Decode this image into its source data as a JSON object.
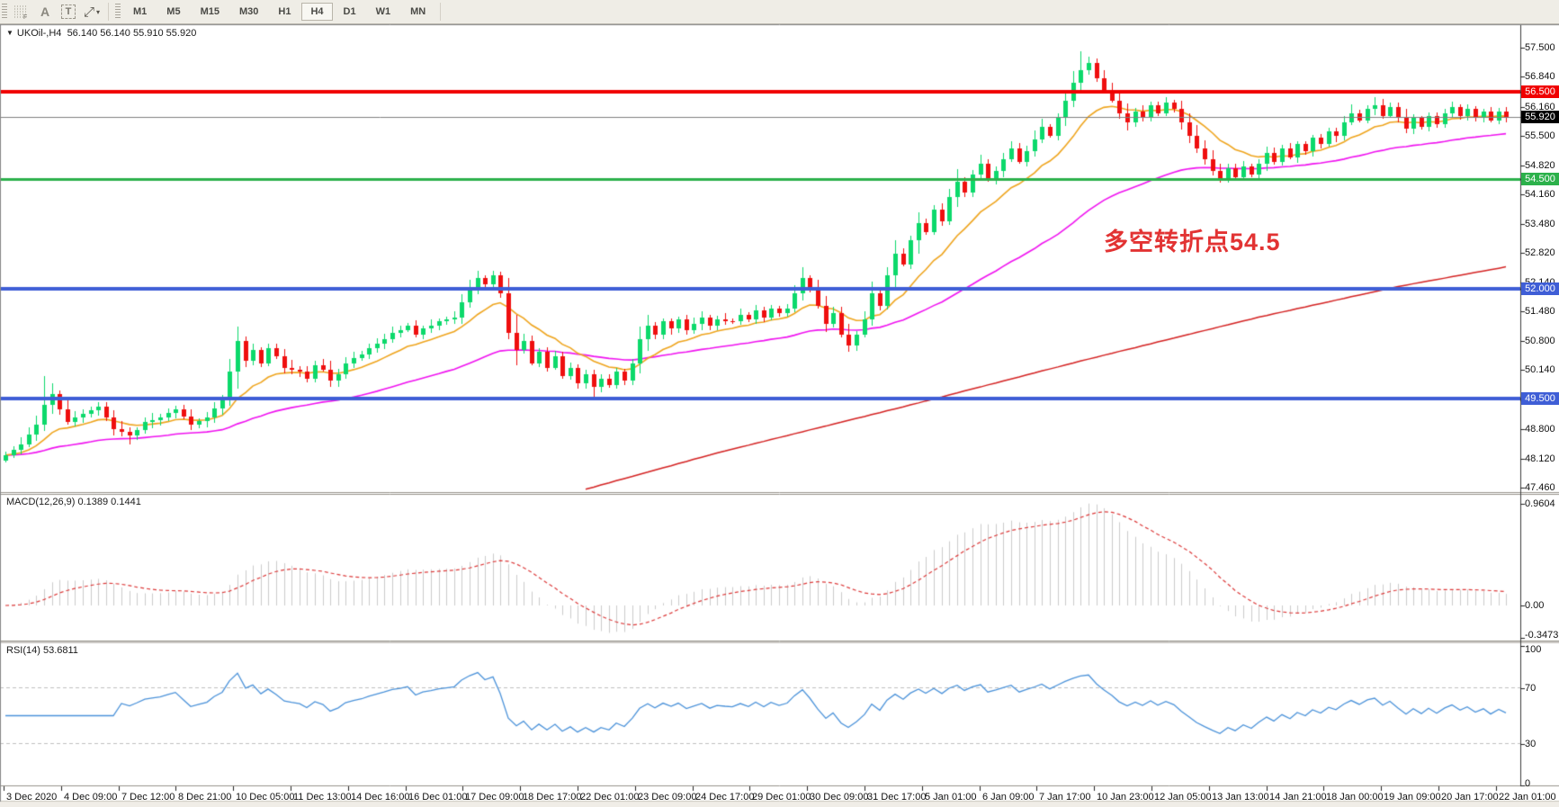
{
  "toolbar": {
    "icons": [
      {
        "name": "template-grid-icon",
        "glyph": "F"
      },
      {
        "name": "cursor-arrow-icon",
        "glyph": "A"
      },
      {
        "name": "text-label-icon",
        "glyph": "T"
      },
      {
        "name": "line-studies-icon",
        "glyph": "⤢"
      },
      {
        "name": "dropdown-caret-icon",
        "glyph": "▾"
      }
    ],
    "timeframes": [
      "M1",
      "M5",
      "M15",
      "M30",
      "H1",
      "H4",
      "D1",
      "W1",
      "MN"
    ],
    "active_timeframe": "H4"
  },
  "chart": {
    "title_symbol": "UKOil-,H4",
    "title_quote": "56.140 56.140 55.910 55.920"
  },
  "chart_data": {
    "type": "candlestick",
    "symbol": "UKOil-",
    "timeframe": "H4",
    "last_quote": {
      "open": 56.14,
      "high": 56.14,
      "low": 55.91,
      "close": 55.92
    },
    "ylim": [
      47.36,
      58.02
    ],
    "price_axis_ticks": [
      "57.500",
      "56.840",
      "56.160",
      "55.500",
      "54.820",
      "54.160",
      "53.480",
      "52.820",
      "52.140",
      "51.480",
      "50.800",
      "50.140",
      "49.460",
      "48.800",
      "48.120",
      "47.460"
    ],
    "levels": [
      {
        "price": 56.5,
        "label": "56.500",
        "color": "#f00000",
        "badge_bg": "#f00000",
        "width": 4
      },
      {
        "price": 55.92,
        "label": "55.920",
        "color": "#808080",
        "badge_bg": "#000000",
        "width": 1
      },
      {
        "price": 54.5,
        "label": "54.500",
        "color": "#2cb14b",
        "badge_bg": "#2cb14b",
        "width": 3
      },
      {
        "price": 52.0,
        "label": "52.000",
        "color": "#3f5ed6",
        "badge_bg": "#3f5ed6",
        "width": 4
      },
      {
        "price": 49.5,
        "label": "49.500",
        "color": "#3f5ed6",
        "badge_bg": "#3f5ed6",
        "width": 4
      }
    ],
    "x_labels": [
      "3 Dec 2020",
      "4 Dec 09:00",
      "7 Dec 12:00",
      "8 Dec 21:00",
      "10 Dec 05:00",
      "11 Dec 13:00",
      "14 Dec 16:00",
      "16 Dec 01:00",
      "17 Dec 09:00",
      "18 Dec 17:00",
      "22 Dec 01:00",
      "23 Dec 09:00",
      "24 Dec 17:00",
      "29 Dec 01:00",
      "30 Dec 09:00",
      "31 Dec 17:00",
      "5 Jan 01:00",
      "6 Jan 09:00",
      "7 Jan 17:00",
      "10 Jan 23:00",
      "12 Jan 05:00",
      "13 Jan 13:00",
      "14 Jan 21:00",
      "18 Jan 00:00",
      "19 Jan 09:00",
      "20 Jan 17:00",
      "22 Jan 01:00"
    ],
    "close_anchors": [
      [
        0,
        48.2
      ],
      [
        2,
        48.45
      ],
      [
        4,
        48.9
      ],
      [
        5,
        49.35
      ],
      [
        6,
        49.6
      ],
      [
        7,
        49.25
      ],
      [
        8,
        48.95
      ],
      [
        10,
        49.15
      ],
      [
        12,
        49.3
      ],
      [
        14,
        48.8
      ],
      [
        16,
        48.65
      ],
      [
        18,
        48.95
      ],
      [
        20,
        49.05
      ],
      [
        22,
        49.25
      ],
      [
        24,
        48.9
      ],
      [
        26,
        49.05
      ],
      [
        28,
        49.45
      ],
      [
        29,
        50.1
      ],
      [
        30,
        50.8
      ],
      [
        31,
        50.35
      ],
      [
        32,
        50.6
      ],
      [
        33,
        50.3
      ],
      [
        34,
        50.65
      ],
      [
        35,
        50.45
      ],
      [
        36,
        50.2
      ],
      [
        38,
        50.1
      ],
      [
        39,
        49.95
      ],
      [
        40,
        50.25
      ],
      [
        41,
        50.15
      ],
      [
        42,
        49.9
      ],
      [
        43,
        50.05
      ],
      [
        44,
        50.3
      ],
      [
        46,
        50.5
      ],
      [
        48,
        50.75
      ],
      [
        50,
        51.0
      ],
      [
        52,
        51.15
      ],
      [
        53,
        50.95
      ],
      [
        54,
        51.1
      ],
      [
        56,
        51.25
      ],
      [
        58,
        51.35
      ],
      [
        59,
        51.7
      ],
      [
        60,
        52.0
      ],
      [
        61,
        52.25
      ],
      [
        62,
        52.1
      ],
      [
        63,
        52.3
      ],
      [
        64,
        51.9
      ],
      [
        65,
        51.0
      ],
      [
        66,
        50.6
      ],
      [
        67,
        50.8
      ],
      [
        68,
        50.3
      ],
      [
        69,
        50.55
      ],
      [
        70,
        50.2
      ],
      [
        71,
        50.45
      ],
      [
        72,
        50.0
      ],
      [
        73,
        50.2
      ],
      [
        74,
        49.85
      ],
      [
        75,
        50.05
      ],
      [
        76,
        49.75
      ],
      [
        77,
        49.95
      ],
      [
        78,
        49.8
      ],
      [
        79,
        50.1
      ],
      [
        80,
        49.9
      ],
      [
        81,
        50.3
      ],
      [
        82,
        50.85
      ],
      [
        83,
        51.15
      ],
      [
        84,
        50.95
      ],
      [
        85,
        51.25
      ],
      [
        86,
        51.1
      ],
      [
        87,
        51.3
      ],
      [
        88,
        51.05
      ],
      [
        89,
        51.2
      ],
      [
        90,
        51.35
      ],
      [
        91,
        51.15
      ],
      [
        92,
        51.3
      ],
      [
        94,
        51.25
      ],
      [
        95,
        51.4
      ],
      [
        96,
        51.3
      ],
      [
        97,
        51.5
      ],
      [
        98,
        51.35
      ],
      [
        99,
        51.55
      ],
      [
        100,
        51.45
      ],
      [
        101,
        51.55
      ],
      [
        102,
        51.9
      ],
      [
        103,
        52.25
      ],
      [
        104,
        52.0
      ],
      [
        105,
        51.6
      ],
      [
        106,
        51.2
      ],
      [
        107,
        51.45
      ],
      [
        108,
        50.95
      ],
      [
        109,
        50.7
      ],
      [
        110,
        50.95
      ],
      [
        111,
        51.3
      ],
      [
        112,
        51.9
      ],
      [
        113,
        51.6
      ],
      [
        114,
        52.3
      ],
      [
        115,
        52.8
      ],
      [
        116,
        52.55
      ],
      [
        117,
        53.1
      ],
      [
        118,
        53.5
      ],
      [
        119,
        53.3
      ],
      [
        120,
        53.8
      ],
      [
        121,
        53.55
      ],
      [
        122,
        54.1
      ],
      [
        123,
        54.45
      ],
      [
        124,
        54.2
      ],
      [
        125,
        54.6
      ],
      [
        126,
        54.85
      ],
      [
        127,
        54.5
      ],
      [
        128,
        54.7
      ],
      [
        129,
        54.95
      ],
      [
        130,
        55.2
      ],
      [
        131,
        54.9
      ],
      [
        132,
        55.15
      ],
      [
        133,
        55.4
      ],
      [
        134,
        55.7
      ],
      [
        135,
        55.5
      ],
      [
        136,
        55.9
      ],
      [
        137,
        56.3
      ],
      [
        138,
        56.7
      ],
      [
        139,
        57.0
      ],
      [
        140,
        57.15
      ],
      [
        141,
        56.8
      ],
      [
        142,
        56.55
      ],
      [
        143,
        56.3
      ],
      [
        144,
        56.0
      ],
      [
        145,
        55.8
      ],
      [
        146,
        56.05
      ],
      [
        147,
        55.9
      ],
      [
        148,
        56.2
      ],
      [
        149,
        56.0
      ],
      [
        150,
        56.25
      ],
      [
        151,
        56.1
      ],
      [
        152,
        55.8
      ],
      [
        153,
        55.5
      ],
      [
        154,
        55.2
      ],
      [
        155,
        54.95
      ],
      [
        156,
        54.7
      ],
      [
        157,
        54.5
      ],
      [
        158,
        54.75
      ],
      [
        159,
        54.55
      ],
      [
        160,
        54.8
      ],
      [
        161,
        54.6
      ],
      [
        162,
        54.85
      ],
      [
        163,
        55.1
      ],
      [
        164,
        54.9
      ],
      [
        165,
        55.2
      ],
      [
        166,
        55.0
      ],
      [
        167,
        55.3
      ],
      [
        168,
        55.15
      ],
      [
        169,
        55.45
      ],
      [
        170,
        55.3
      ],
      [
        171,
        55.6
      ],
      [
        172,
        55.5
      ],
      [
        173,
        55.8
      ],
      [
        174,
        56.0
      ],
      [
        175,
        55.85
      ],
      [
        176,
        56.1
      ],
      [
        177,
        56.2
      ],
      [
        178,
        55.95
      ],
      [
        179,
        56.15
      ],
      [
        180,
        55.9
      ],
      [
        181,
        55.65
      ],
      [
        182,
        55.9
      ],
      [
        183,
        55.7
      ],
      [
        184,
        55.95
      ],
      [
        185,
        55.75
      ],
      [
        186,
        56.0
      ],
      [
        187,
        56.15
      ],
      [
        188,
        55.95
      ],
      [
        189,
        56.1
      ],
      [
        190,
        55.9
      ],
      [
        191,
        56.05
      ],
      [
        192,
        55.85
      ],
      [
        193,
        56.05
      ],
      [
        194,
        55.92
      ]
    ],
    "wick_overrides": {
      "5": {
        "h": 50.0
      },
      "16": {
        "l": 48.45
      },
      "61": {
        "h": 52.4
      },
      "76": {
        "l": 49.53
      },
      "103": {
        "h": 52.5
      },
      "109": {
        "l": 50.55
      },
      "139": {
        "h": 57.42
      },
      "140": {
        "h": 57.3
      },
      "157": {
        "l": 54.42
      }
    },
    "ma_red_anchors": [
      [
        75,
        47.42
      ],
      [
        92,
        48.25
      ],
      [
        116,
        49.3
      ],
      [
        139,
        50.35
      ],
      [
        162,
        51.35
      ],
      [
        180,
        52.05
      ],
      [
        194,
        52.5
      ]
    ],
    "macd": {
      "label": "MACD(12,26,9)",
      "values": "0.1389 0.1441",
      "axis_labels": [
        "0.9604",
        "0.00",
        "-0.3473"
      ],
      "hist_color": "#cbcbcb",
      "signal_color": "#dd3b3b"
    },
    "rsi": {
      "label": "RSI(14)",
      "value": "53.6811",
      "axis_labels": [
        "100",
        "70",
        "30",
        "0"
      ],
      "guide_levels": [
        70,
        30
      ],
      "color": "#4c93da"
    },
    "annotation": {
      "text": "多空转折点54.5",
      "color": "#e23333"
    },
    "colors": {
      "bull": "#0cd96b",
      "bear": "#ef0f0f",
      "ma_fast": "#efa51e",
      "ma_mid": "#f013f0",
      "ma_slow": "#d42222",
      "axis_line": "#3d3d3d"
    }
  }
}
